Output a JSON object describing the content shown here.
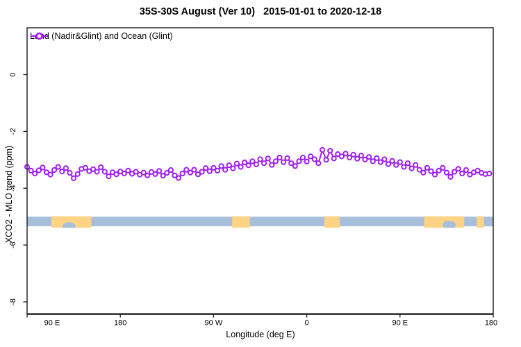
{
  "title": "35S-30S August (Ver 10)   2015-01-01 to 2020-12-18",
  "legend": {
    "label": "Land (Nadir&Glint) and Ocean (Glint)"
  },
  "chart_data": {
    "type": "line",
    "title": "35S-30S August (Ver 10)   2015-01-01 to 2020-12-18",
    "xlabel": "Longitude (deg E)",
    "ylabel": "XCO2 - MLO trend (ppm)",
    "x_axis": {
      "lon_start": 90,
      "lon_end": 540,
      "tick_lons": [
        90,
        180,
        270,
        360,
        450,
        540
      ],
      "tick_labels": [
        "90 E",
        "180",
        "90 W",
        "0",
        "90 E",
        "180"
      ]
    },
    "y_axis": {
      "tick_values": [
        0,
        -2,
        -4,
        -6,
        -8
      ],
      "tick_labels": [
        "0",
        "-2",
        "-4",
        "-6",
        "-8"
      ],
      "visible_range_top": 1.6,
      "visible_range_bottom": -8.4
    },
    "grid": "off",
    "legend_position": "top-left-inside",
    "series": [
      {
        "name": "Land (Nadir&Glint) and Ocean (Glint)",
        "color": "#A020F0",
        "marker": "open-circle",
        "lon0": 90,
        "lon_step": 3.75,
        "values_ppm": [
          -3.25,
          -3.38,
          -3.48,
          -3.37,
          -3.27,
          -3.44,
          -3.52,
          -3.36,
          -3.25,
          -3.41,
          -3.29,
          -3.46,
          -3.65,
          -3.5,
          -3.32,
          -3.28,
          -3.4,
          -3.33,
          -3.42,
          -3.26,
          -3.42,
          -3.58,
          -3.44,
          -3.51,
          -3.41,
          -3.48,
          -3.38,
          -3.49,
          -3.42,
          -3.52,
          -3.45,
          -3.55,
          -3.43,
          -3.5,
          -3.39,
          -3.56,
          -3.46,
          -3.36,
          -3.55,
          -3.64,
          -3.48,
          -3.35,
          -3.45,
          -3.35,
          -3.51,
          -3.42,
          -3.29,
          -3.4,
          -3.28,
          -3.38,
          -3.22,
          -3.35,
          -3.19,
          -3.3,
          -3.13,
          -3.25,
          -3.09,
          -3.19,
          -3.05,
          -3.16,
          -2.98,
          -3.12,
          -2.95,
          -3.18,
          -3.05,
          -2.92,
          -3.08,
          -2.94,
          -3.12,
          -3.22,
          -3.05,
          -2.92,
          -3.06,
          -2.88,
          -2.98,
          -3.12,
          -2.65,
          -3.0,
          -2.68,
          -2.95,
          -2.8,
          -2.88,
          -2.78,
          -2.92,
          -2.82,
          -2.96,
          -2.85,
          -2.99,
          -2.9,
          -3.05,
          -2.94,
          -3.08,
          -2.98,
          -3.15,
          -3.04,
          -3.18,
          -3.08,
          -3.25,
          -3.12,
          -3.3,
          -3.18,
          -3.35,
          -3.45,
          -3.28,
          -3.4,
          -3.52,
          -3.38,
          -3.28,
          -3.45,
          -3.6,
          -3.42,
          -3.32,
          -3.48,
          -3.36,
          -3.52,
          -3.44,
          -3.38,
          -3.46,
          -3.5,
          -3.48
        ]
      }
    ],
    "map_band": {
      "ocean_color": "#A8BFDC",
      "land_color": "#FDD384",
      "value_top": -5.0,
      "value_bottom": -5.34,
      "land_segments_lon": [
        [
          113.5,
          152
        ],
        [
          288,
          305
        ],
        [
          377,
          392
        ],
        [
          473.5,
          512
        ],
        [
          524,
          531
        ]
      ],
      "ocean_inlets_lon": [
        [
          124,
          137
        ],
        [
          491,
          504
        ]
      ]
    }
  }
}
